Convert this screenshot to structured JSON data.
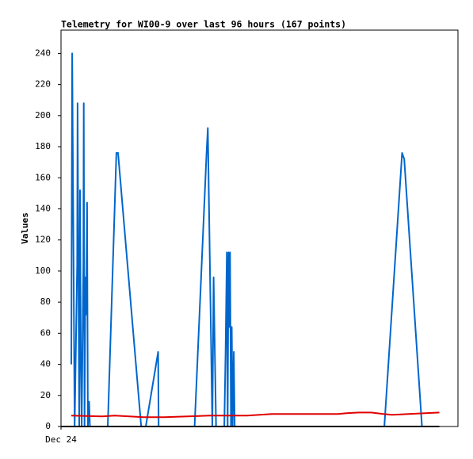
{
  "chart_data": {
    "type": "line",
    "title": "Telemetry for WI00-9 over last 96 hours (167 points)",
    "y_label": "Values",
    "xlim": [
      0,
      96
    ],
    "xticks": [
      {
        "value": 0,
        "label": "Dec 24"
      }
    ],
    "ylim": [
      0,
      255
    ],
    "yticks": [
      0,
      20,
      40,
      60,
      80,
      100,
      120,
      140,
      160,
      180,
      200,
      220,
      240
    ],
    "series": [
      {
        "color": "#0066cc",
        "x": [
          2.5,
          2.7,
          3.3,
          3.9,
          4.0,
          4.4,
          4.6,
          4.8,
          5.0,
          5.4,
          5.5,
          5.7,
          5.9,
          6.1,
          6.3,
          6.5,
          6.8,
          7.0,
          11.3,
          13.4,
          13.8,
          19.4,
          20.5,
          23.5,
          23.6,
          32.3,
          35.2,
          35.5,
          36.6,
          36.9,
          37.5,
          39.5,
          39.8,
          40.1,
          40.3,
          40.5,
          40.7,
          40.9,
          41.1,
          41.3,
          41.5,
          41.8,
          42.0,
          78.2,
          82.5,
          83.0,
          87.3
        ],
        "values": [
          40,
          240,
          0,
          104,
          208,
          0,
          152,
          48,
          0,
          104,
          208,
          0,
          96,
          72,
          144,
          0,
          16,
          0,
          0,
          176,
          176,
          0,
          0,
          48,
          0,
          0,
          176,
          192,
          0,
          96,
          0,
          0,
          48,
          112,
          0,
          112,
          64,
          112,
          0,
          64,
          0,
          48,
          0,
          0,
          176,
          172,
          0
        ]
      },
      {
        "color": "#e00000",
        "x": [
          2.5,
          10,
          13,
          20,
          25,
          36,
          45,
          48,
          51,
          67,
          69,
          72,
          75,
          78,
          80,
          84,
          88,
          91.5
        ],
        "values": [
          7,
          6.5,
          7,
          6,
          6,
          7,
          7,
          7.5,
          8,
          8,
          8.5,
          9,
          9,
          8,
          7.5,
          8,
          8.5,
          9
        ]
      },
      {
        "color": "#000000",
        "x": [
          0,
          91.5
        ],
        "values": [
          0,
          0
        ]
      }
    ]
  }
}
